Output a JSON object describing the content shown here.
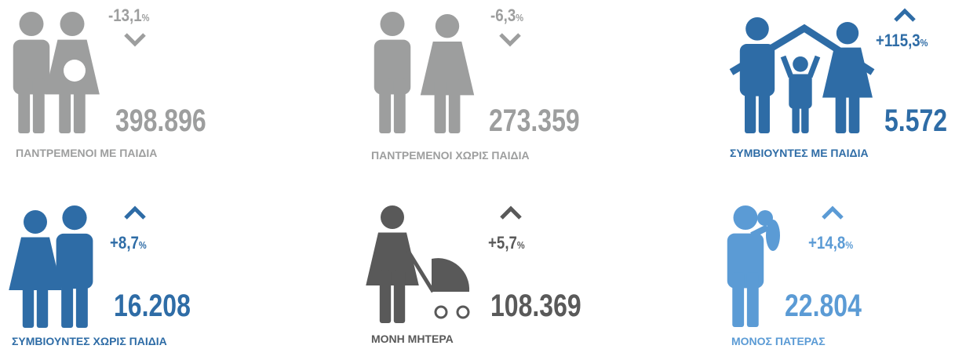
{
  "items": [
    {
      "label": "ΠΑΝΤΡΕΜΕΝΟΙ ΜΕ ΠΑΙΔΙΑ",
      "value": "398.896",
      "change": "-13,1",
      "unit": "%",
      "direction": "down",
      "color": "#9d9e9e"
    },
    {
      "label": "ΠΑΝΤΡΕΜΕΝΟΙ ΧΩΡΙΣ ΠΑΙΔΙΑ",
      "value": "273.359",
      "change": "-6,3",
      "unit": "%",
      "direction": "down",
      "color": "#9d9e9e"
    },
    {
      "label": "ΣΥΜΒΙΟΥΝΤΕΣ ΜΕ ΠΑΙΔΙΑ",
      "value": "5.572",
      "change": "+115,3",
      "unit": "%",
      "direction": "up",
      "color": "#2e6ca6"
    },
    {
      "label": "ΣΥΜΒΙΟΥΝΤΕΣ ΧΩΡΙΣ ΠΑΙΔΙΑ",
      "value": "16.208",
      "change": "+8,7",
      "unit": "%",
      "direction": "up",
      "color": "#2e6ca6"
    },
    {
      "label": "ΜΟΝΗ ΜΗΤΕΡΑ",
      "value": "108.369",
      "change": "+5,7",
      "unit": "%",
      "direction": "up",
      "color": "#595959"
    },
    {
      "label": "ΜΟΝΟΣ ΠΑΤΕΡΑΣ",
      "value": "22.804",
      "change": "+14,8",
      "unit": "%",
      "direction": "up",
      "color": "#5b9bd5"
    }
  ]
}
